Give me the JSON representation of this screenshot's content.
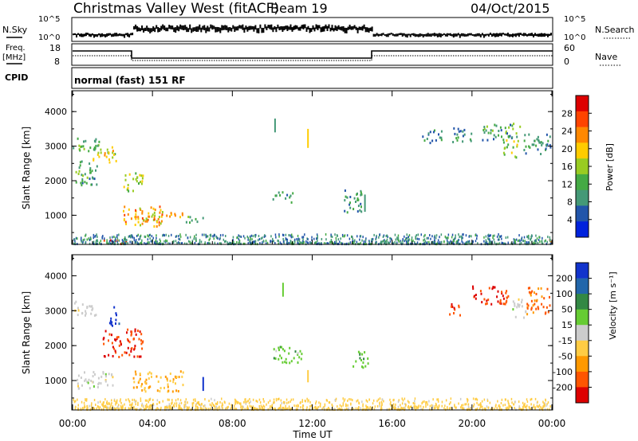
{
  "header": {
    "title": "Christmas Valley West (fitACF)",
    "beam": "Beam 19",
    "date": "04/Oct/2015"
  },
  "summary_panel": {
    "nsky_label": "N.Sky",
    "nsearch_label": "N.Search",
    "nsky_ticks": [
      "10^5",
      "10^0"
    ],
    "nsearch_ticks": [
      "10^5",
      "10^0"
    ],
    "freq_label": "Freq.",
    "freq_unit": "[MHz]",
    "freq_ticks": [
      "18",
      "8"
    ],
    "nave_label": "Nave",
    "nave_ticks": [
      "60",
      "0"
    ],
    "cpid_label": "CPID",
    "cpid_value": "normal (fast) 151 RF"
  },
  "chart_data": [
    {
      "type": "heatmap",
      "name": "power",
      "ylabel": "Slant Range [km]",
      "xlabel": "",
      "ylim": [
        180,
        4580
      ],
      "yticks": [
        "1000",
        "2000",
        "3000",
        "4000"
      ],
      "colorbar_label": "Power [dB]",
      "colorbar_ticks": [
        "28",
        "24",
        "20",
        "16",
        "12",
        "8",
        "4"
      ],
      "colorbar_colors": [
        "#dd0000",
        "#ff4400",
        "#ff8800",
        "#ffcc00",
        "#99cc22",
        "#44aa44",
        "#449977",
        "#2255aa",
        "#0022dd"
      ],
      "blobs": [
        {
          "t0": 0.0,
          "t1": 1.3,
          "r0": 2850,
          "r1": 3300,
          "val": 12
        },
        {
          "t0": 1.0,
          "t1": 2.2,
          "r0": 2500,
          "r1": 3000,
          "val": 18
        },
        {
          "t0": 0.0,
          "t1": 1.2,
          "r0": 1900,
          "r1": 2600,
          "val": 10
        },
        {
          "t0": 2.5,
          "t1": 3.5,
          "r0": 1700,
          "r1": 2300,
          "val": 17
        },
        {
          "t0": 3.5,
          "t1": 5.5,
          "r0": 850,
          "r1": 1150,
          "val": 20
        },
        {
          "t0": 2.5,
          "t1": 4.5,
          "r0": 700,
          "r1": 1300,
          "val": 22
        },
        {
          "t0": 1.2,
          "t1": 2.8,
          "r0": 200,
          "r1": 320,
          "val": 28
        },
        {
          "t0": 5.5,
          "t1": 6.5,
          "r0": 800,
          "r1": 1000,
          "val": 12
        },
        {
          "t0": 10.0,
          "t1": 11.0,
          "r0": 1400,
          "r1": 1700,
          "val": 9
        },
        {
          "t0": 13.5,
          "t1": 14.5,
          "r0": 1100,
          "r1": 1800,
          "val": 8
        },
        {
          "t0": 19.0,
          "t1": 20.0,
          "r0": 3150,
          "r1": 3600,
          "val": 10
        },
        {
          "t0": 20.5,
          "t1": 22.5,
          "r0": 3200,
          "r1": 3700,
          "val": 11
        },
        {
          "t0": 21.5,
          "t1": 22.3,
          "r0": 2700,
          "r1": 3200,
          "val": 16
        },
        {
          "t0": 22.5,
          "t1": 24.0,
          "r0": 2800,
          "r1": 3400,
          "val": 9
        },
        {
          "t0": 23.7,
          "t1": 24.0,
          "r0": 200,
          "r1": 330,
          "val": 27
        },
        {
          "t0": 17.5,
          "t1": 18.5,
          "r0": 3100,
          "r1": 3500,
          "val": 9
        }
      ],
      "noise_band": {
        "r0": 200,
        "r1": 480,
        "val": 8
      },
      "streaks": [
        {
          "t": 11.75,
          "r0": 2950,
          "r1": 3500,
          "val": 18
        },
        {
          "t": 10.1,
          "r0": 3400,
          "r1": 3800,
          "val": 10
        },
        {
          "t": 14.6,
          "r0": 1100,
          "r1": 1600,
          "val": 8
        }
      ]
    },
    {
      "type": "heatmap",
      "name": "velocity",
      "ylabel": "Slant Range [km]",
      "xlabel": "Time UT",
      "ylim": [
        180,
        4580
      ],
      "xlim": [
        0,
        24
      ],
      "xticks": [
        "00:00",
        "04:00",
        "08:00",
        "12:00",
        "16:00",
        "20:00",
        "00:00"
      ],
      "yticks": [
        "1000",
        "2000",
        "3000",
        "4000"
      ],
      "colorbar_label": "Velocity [m s⁻¹]",
      "colorbar_ticks": [
        "200",
        "100",
        "50",
        "15",
        "-15",
        "-50",
        "-100",
        "-200"
      ],
      "colorbar_colors": [
        "#1133cc",
        "#2266aa",
        "#338844",
        "#66cc33",
        "#cccccc",
        "#ffcc44",
        "#ff9900",
        "#ff5500",
        "#dd0000"
      ],
      "blobs": [
        {
          "t0": 0.0,
          "t1": 1.2,
          "r0": 2850,
          "r1": 3300,
          "val": 0
        },
        {
          "t0": 1.8,
          "t1": 2.3,
          "r0": 2600,
          "r1": 3200,
          "val": 220
        },
        {
          "t0": 1.5,
          "t1": 3.5,
          "r0": 1700,
          "r1": 2500,
          "val": -200
        },
        {
          "t0": 3.0,
          "t1": 5.5,
          "r0": 700,
          "r1": 1300,
          "val": -80
        },
        {
          "t0": 0.2,
          "t1": 2.2,
          "r0": 800,
          "r1": 1300,
          "val": 0
        },
        {
          "t0": 1.5,
          "t1": 2.5,
          "r0": 200,
          "r1": 320,
          "val": 0
        },
        {
          "t0": 10.0,
          "t1": 11.5,
          "r0": 1500,
          "r1": 2000,
          "val": 60
        },
        {
          "t0": 14.0,
          "t1": 14.8,
          "r0": 1400,
          "r1": 1900,
          "val": 60
        },
        {
          "t0": 18.8,
          "t1": 19.4,
          "r0": 2900,
          "r1": 3300,
          "val": -200
        },
        {
          "t0": 20.0,
          "t1": 21.8,
          "r0": 3200,
          "r1": 3750,
          "val": -200
        },
        {
          "t0": 22.0,
          "t1": 22.7,
          "r0": 2800,
          "r1": 3400,
          "val": 0
        },
        {
          "t0": 22.7,
          "t1": 24.0,
          "r0": 2900,
          "r1": 3700,
          "val": -150
        }
      ],
      "noise_band": {
        "r0": 200,
        "r1": 520,
        "val": -40
      },
      "streaks": [
        {
          "t": 6.5,
          "r0": 700,
          "r1": 1100,
          "val": 220
        },
        {
          "t": 10.5,
          "r0": 3400,
          "r1": 3800,
          "val": 60
        },
        {
          "t": 11.75,
          "r0": 950,
          "r1": 1300,
          "val": -60
        }
      ]
    }
  ]
}
